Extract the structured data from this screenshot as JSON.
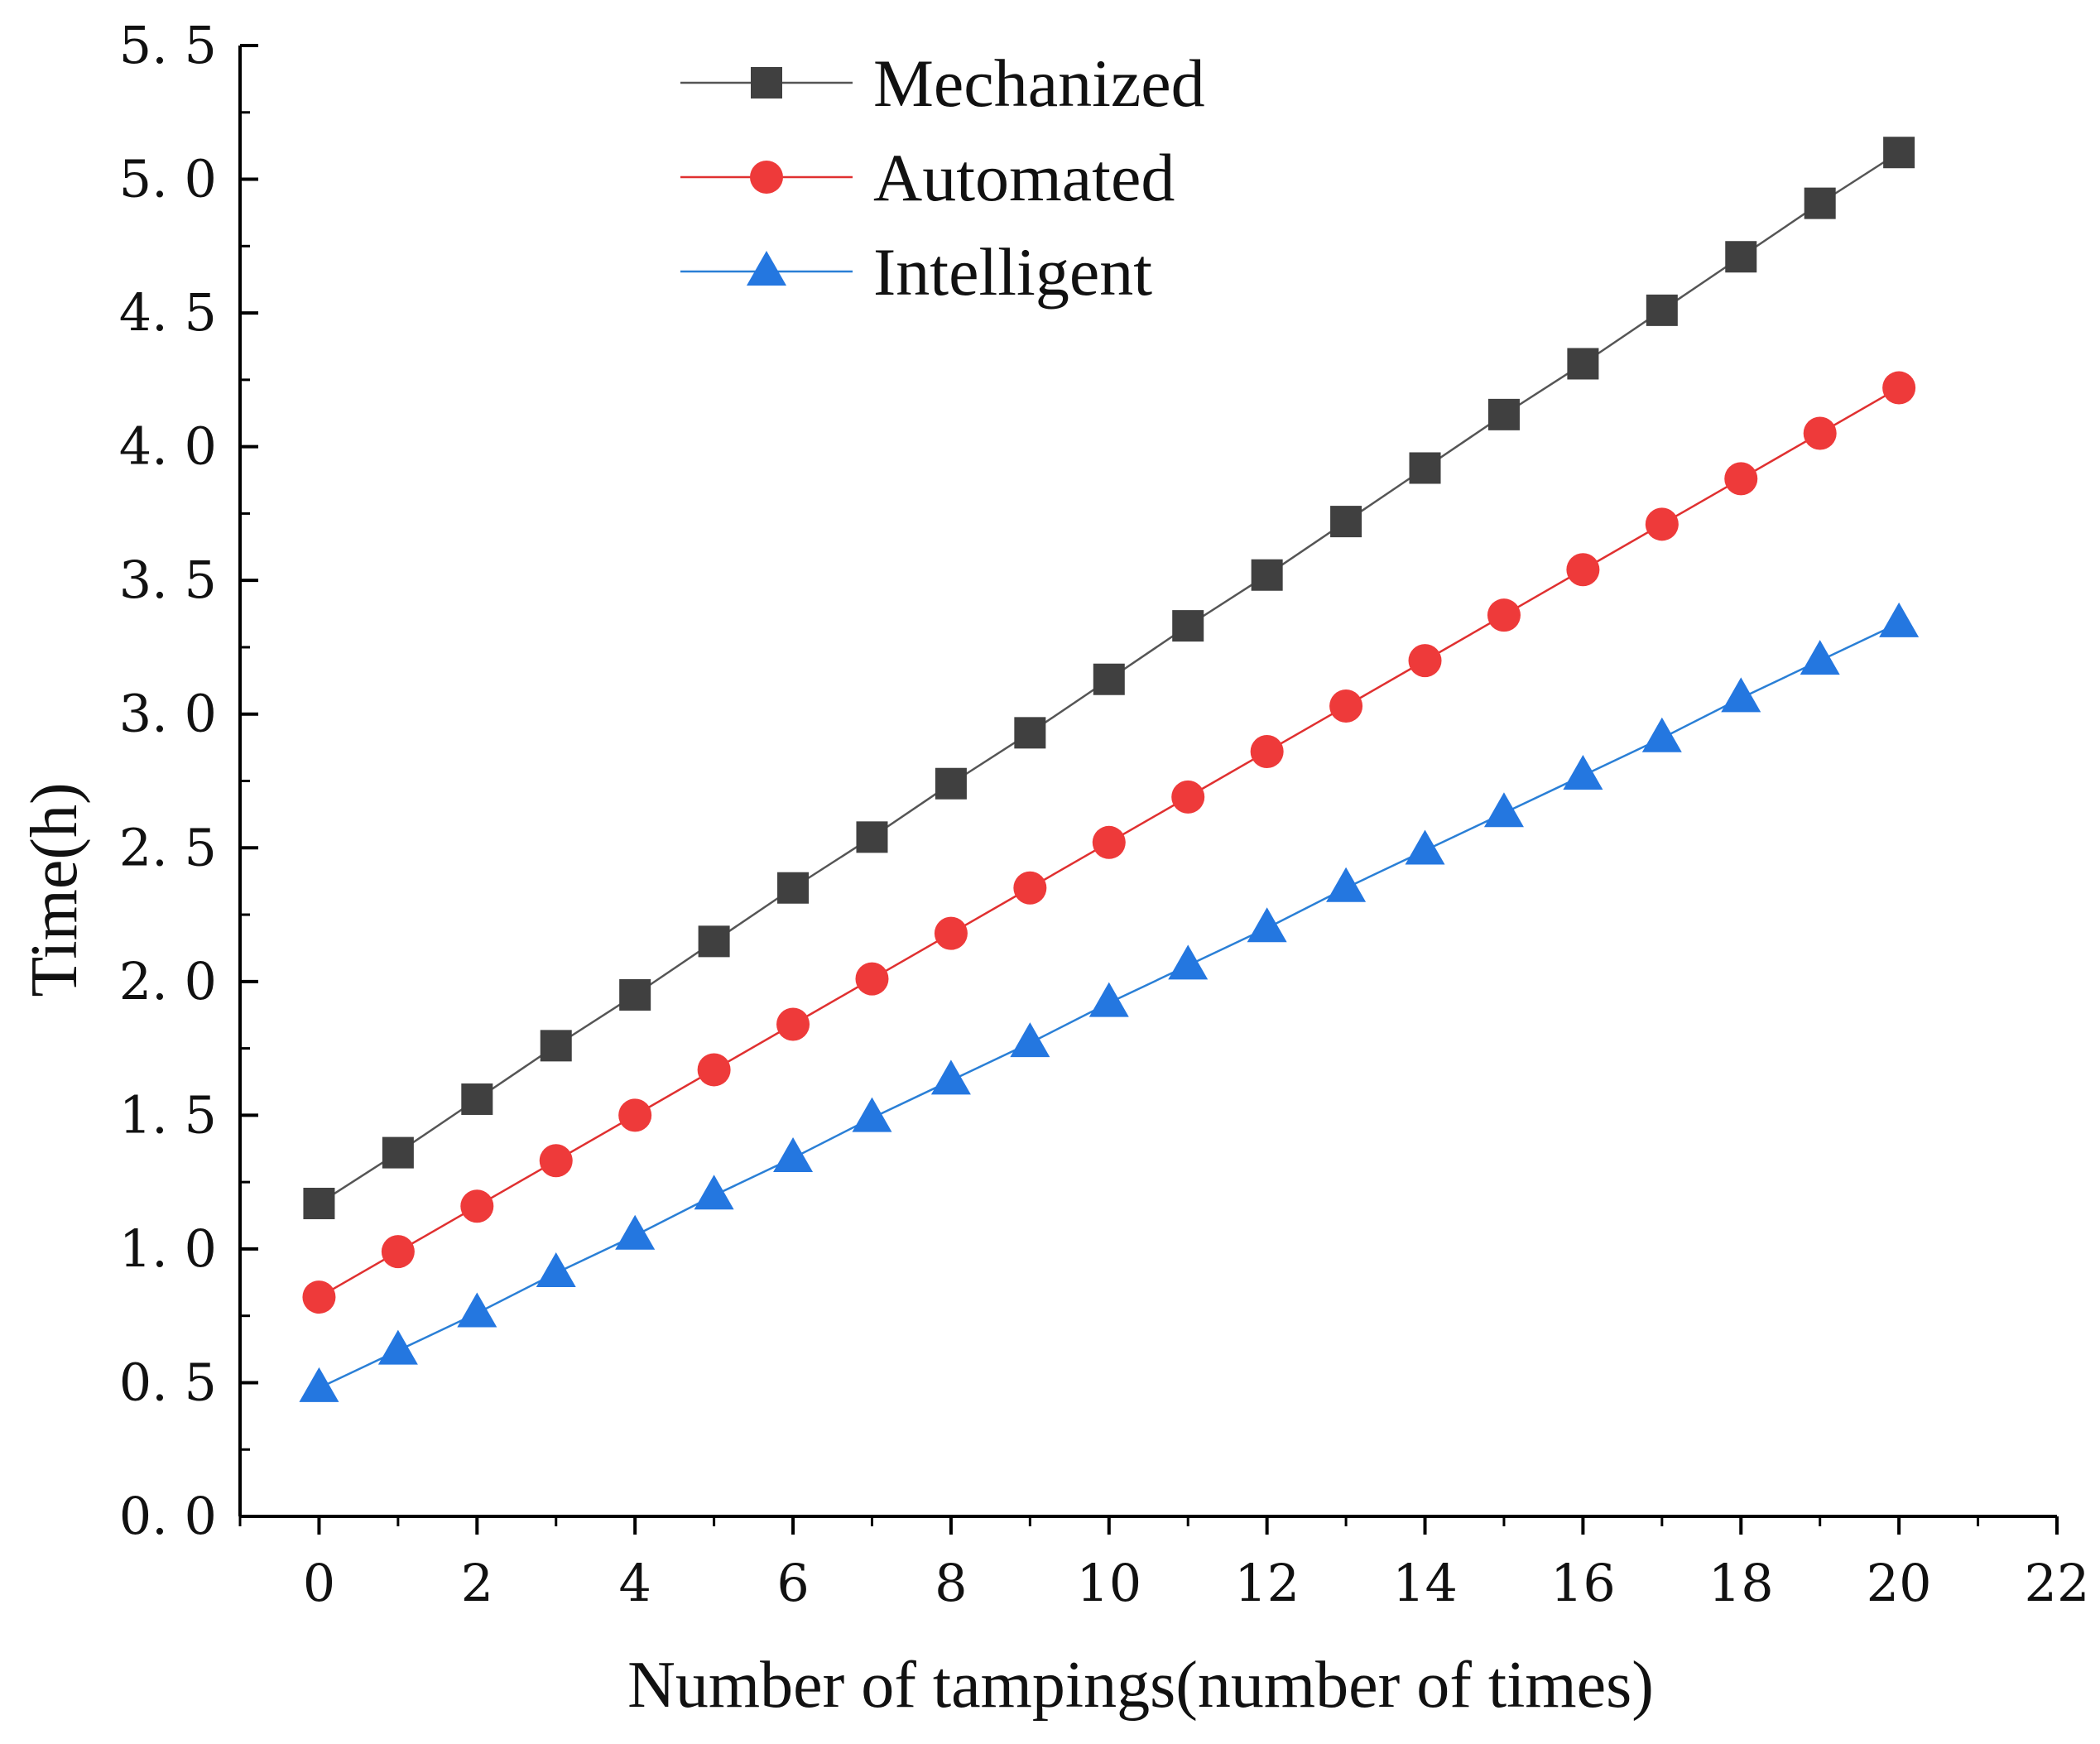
{
  "chart_data": {
    "type": "line",
    "title": "",
    "xlabel": "Number of tampings(number of times)",
    "ylabel": "Time(h)",
    "xlim": [
      -1,
      22
    ],
    "ylim": [
      0,
      5.5
    ],
    "xticks": [
      0,
      2,
      4,
      6,
      8,
      10,
      12,
      14,
      16,
      18,
      20,
      22
    ],
    "xtick_labels": [
      "0",
      "2",
      "4",
      "6",
      "8",
      "10",
      "12",
      "14",
      "16",
      "18",
      "20",
      "22"
    ],
    "yticks": [
      0,
      0.5,
      1.0,
      1.5,
      2.0,
      2.5,
      3.0,
      3.5,
      4.0,
      4.5,
      5.0,
      5.5
    ],
    "ytick_labels": [
      "0. 0",
      "0. 5",
      "1. 0",
      "1. 5",
      "2. 0",
      "2. 5",
      "3. 0",
      "3. 5",
      "4. 0",
      "4. 5",
      "5. 0",
      "5. 5"
    ],
    "grid": false,
    "legend_position": "top-center",
    "x": [
      0,
      1,
      2,
      3,
      4,
      5,
      6,
      7,
      8,
      9,
      10,
      11,
      12,
      13,
      14,
      15,
      16,
      17,
      18,
      19,
      20
    ],
    "series": [
      {
        "name": "Mechanized",
        "marker": "square",
        "color": "#404040",
        "line_color": "#555555",
        "values": [
          1.17,
          1.36,
          1.56,
          1.76,
          1.95,
          2.15,
          2.35,
          2.54,
          2.74,
          2.93,
          3.13,
          3.33,
          3.52,
          3.72,
          3.92,
          4.12,
          4.31,
          4.51,
          4.71,
          4.91,
          5.1
        ]
      },
      {
        "name": "Automated",
        "marker": "circle",
        "color": "#ee3a3a",
        "line_color": "#e03030",
        "values": [
          0.82,
          0.99,
          1.16,
          1.33,
          1.5,
          1.67,
          1.84,
          2.01,
          2.18,
          2.35,
          2.52,
          2.69,
          2.86,
          3.03,
          3.2,
          3.37,
          3.54,
          3.71,
          3.88,
          4.05,
          4.22
        ]
      },
      {
        "name": "Intelligent",
        "marker": "triangle",
        "color": "#2477e0",
        "line_color": "#2a7fd6",
        "values": [
          0.48,
          0.62,
          0.76,
          0.91,
          1.05,
          1.2,
          1.34,
          1.49,
          1.63,
          1.77,
          1.92,
          2.06,
          2.2,
          2.35,
          2.49,
          2.63,
          2.77,
          2.91,
          3.06,
          3.2,
          3.34
        ]
      }
    ]
  }
}
